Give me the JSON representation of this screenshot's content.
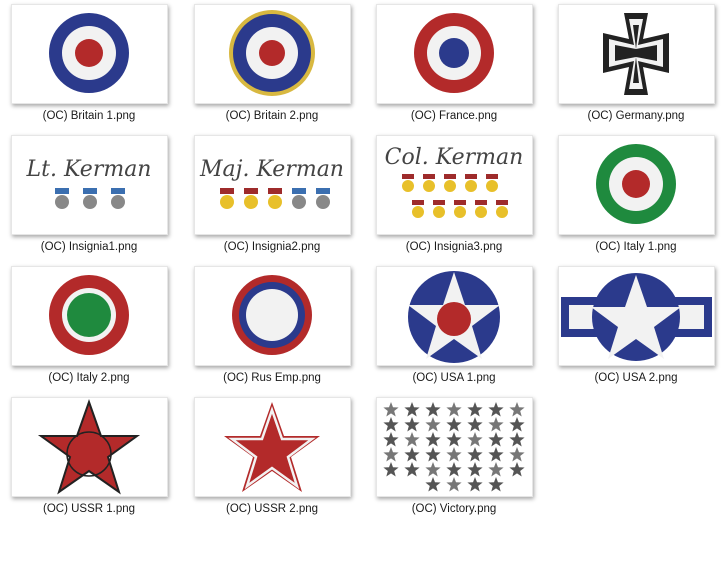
{
  "files": [
    {
      "name": "(OC) Britain 1.png",
      "icon": "roundel-icon"
    },
    {
      "name": "(OC) Britain 2.png",
      "icon": "roundel-icon"
    },
    {
      "name": "(OC) France.png",
      "icon": "roundel-icon"
    },
    {
      "name": "(OC) Germany.png",
      "icon": "iron-cross-icon"
    },
    {
      "name": "(OC) Insignia1.png",
      "icon": "insignia-icon"
    },
    {
      "name": "(OC) Insignia2.png",
      "icon": "insignia-icon"
    },
    {
      "name": "(OC) Insignia3.png",
      "icon": "insignia-icon"
    },
    {
      "name": "(OC) Italy 1.png",
      "icon": "roundel-icon"
    },
    {
      "name": "(OC) Italy 2.png",
      "icon": "roundel-icon"
    },
    {
      "name": "(OC) Rus Emp.png",
      "icon": "roundel-icon"
    },
    {
      "name": "(OC) USA 1.png",
      "icon": "star-roundel-icon"
    },
    {
      "name": "(OC) USA 2.png",
      "icon": "star-bar-icon"
    },
    {
      "name": "(OC) USSR 1.png",
      "icon": "star-icon"
    },
    {
      "name": "(OC) USSR 2.png",
      "icon": "star-icon"
    },
    {
      "name": "(OC) Victory.png",
      "icon": "star-grid-icon"
    }
  ],
  "insignia_text": {
    "lt": "Lt. Kerman",
    "maj": "Maj. Kerman",
    "col": "Col. Kerman"
  },
  "colors": {
    "red": "#b32a2a",
    "blue": "#2b3a8c",
    "green": "#1f8a3e",
    "gold": "#d8b840",
    "black": "#222222",
    "grey_star": "#555555"
  }
}
